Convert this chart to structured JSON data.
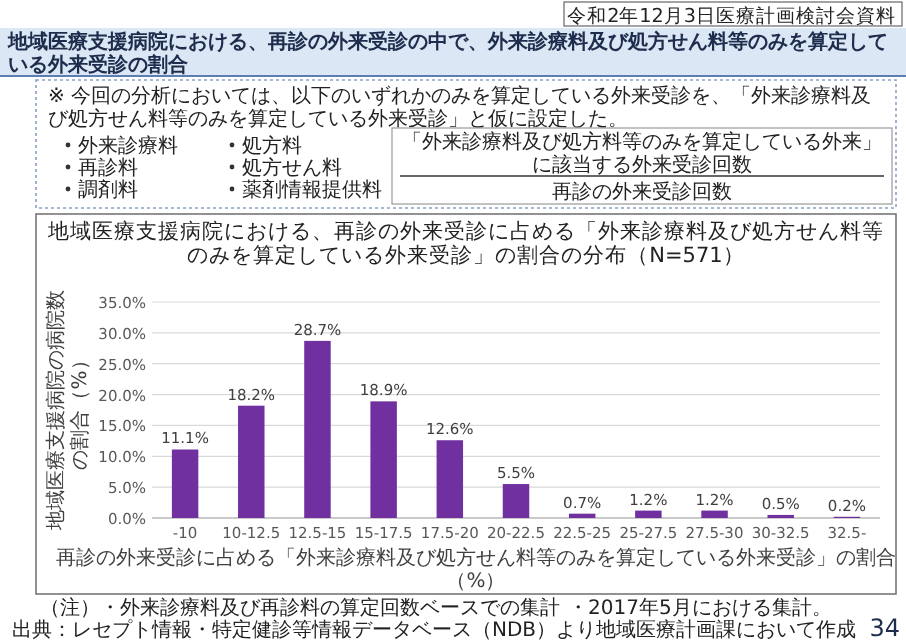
{
  "chart_data": {
    "type": "bar",
    "title": "地域医療支援病院における、再診の外来受診に占める「外来診療料及び処方せん料等のみを算定している外来受診」の割合の分布（N=571）",
    "xlabel": "再診の外来受診に占める「外来診療料及び処方せん料等のみを算定している外来受診」の割合（%）",
    "ylabel": "地域医療支援病院の病院数の割合（%）",
    "categories": [
      "-10",
      "10-12.5",
      "12.5-15",
      "15-17.5",
      "17.5-20",
      "20-22.5",
      "22.5-25",
      "25-27.5",
      "27.5-30",
      "30-32.5",
      "32.5-"
    ],
    "values": [
      11.1,
      18.2,
      28.7,
      18.9,
      12.6,
      5.5,
      0.7,
      1.2,
      1.2,
      0.5,
      0.2
    ],
    "value_labels": [
      "11.1%",
      "18.2%",
      "28.7%",
      "18.9%",
      "12.6%",
      "5.5%",
      "0.7%",
      "1.2%",
      "1.2%",
      "0.5%",
      "0.2%"
    ],
    "color": "#7030a0",
    "ylim": [
      0,
      35
    ],
    "yticks": [
      {
        "value": 0,
        "label": "0.0%"
      },
      {
        "value": 5,
        "label": "5.0%"
      },
      {
        "value": 10,
        "label": "10.0%"
      },
      {
        "value": 15,
        "label": "15.0%"
      },
      {
        "value": 20,
        "label": "20.0%"
      },
      {
        "value": 25,
        "label": "25.0%"
      },
      {
        "value": 30,
        "label": "30.0%"
      },
      {
        "value": 35,
        "label": "35.0%"
      }
    ],
    "grid": "y",
    "annotations": [
      "令和2年12月3日医療計画検討会資料",
      "地域医療支援病院における、再診の外来受診の中で、外来診療料及び処方せん料等のみを算定している外来受診の割合",
      "※ 今回の分析においては、以下のいずれかのみを算定している外来受診を、「外来診療料及び処方せん料等のみを算定している外来受診」と仮に設定した。",
      "外来診療料",
      "再診料",
      "調剤料",
      "処方料",
      "処方せん料",
      "薬剤情報提供料",
      "「外来診療料及び処方料等のみを算定している外来」に該当する外来受診回数",
      "再診の外来受診回数",
      "（注）",
      "・外来診療料及び再診料の算定回数ベースでの集計",
      "・2017年5月における集計。",
      "出典：レセプト情報・特定健診等情報データベース（NDB）より地域医療計画課において作成",
      "34"
    ]
  }
}
